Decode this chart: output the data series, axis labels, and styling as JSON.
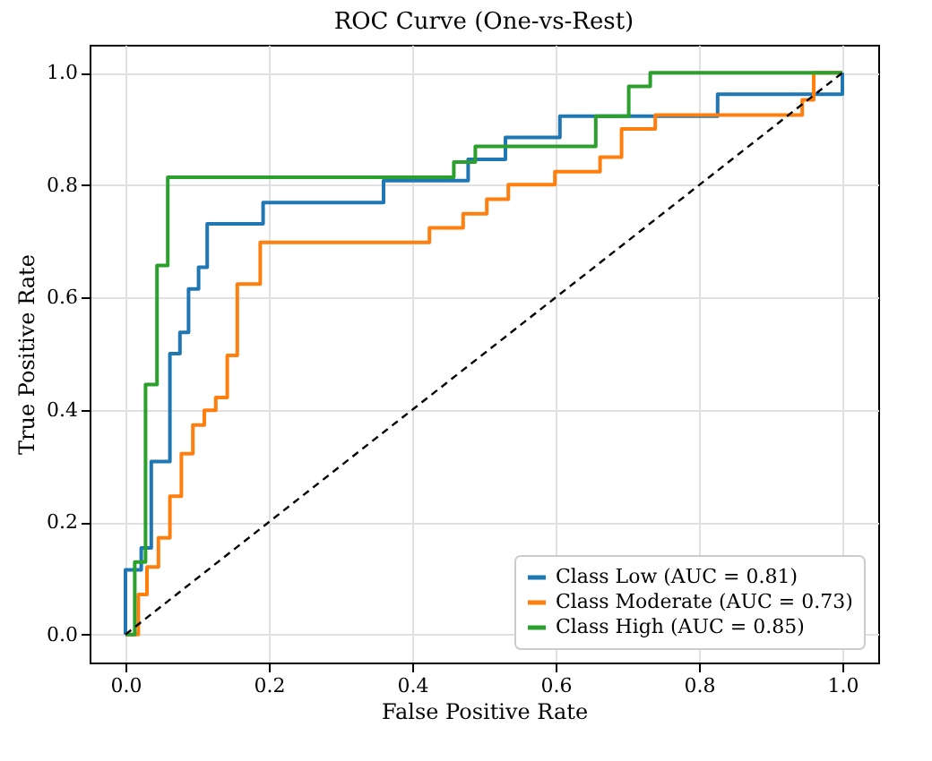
{
  "chart_data": {
    "type": "step",
    "title": "ROC Curve (One-vs-Rest)",
    "xlabel": "False Positive Rate",
    "ylabel": "True Positive Rate",
    "xlim": [
      -0.05,
      1.05
    ],
    "ylim": [
      -0.05,
      1.05
    ],
    "xticks": [
      {
        "value": 0,
        "label": "0.0"
      },
      0.2,
      0.4,
      0.6,
      0.8,
      {
        "value": 1,
        "label": "1.0"
      }
    ],
    "yticks": [
      {
        "value": 0,
        "label": "0.0"
      },
      0.2,
      0.4,
      0.6,
      0.8,
      {
        "value": 1,
        "label": "1.0"
      }
    ],
    "grid": true,
    "legend": "bottom right",
    "series": [
      {
        "name": "Class Low (AUC = 0.81)",
        "color": "#1f77b4",
        "x": [
          0,
          0,
          0.022,
          0.022,
          0.036,
          0.036,
          0.062,
          0.062,
          0.076,
          0.076,
          0.088,
          0.088,
          0.102,
          0.102,
          0.114,
          0.114,
          0.192,
          0.192,
          0.36,
          0.36,
          0.478,
          0.478,
          0.53,
          0.53,
          0.606,
          0.606,
          0.826,
          0.826,
          1,
          1
        ],
        "values": [
          0,
          0.115,
          0.115,
          0.154,
          0.154,
          0.308,
          0.308,
          0.5,
          0.5,
          0.538,
          0.538,
          0.615,
          0.615,
          0.654,
          0.654,
          0.731,
          0.731,
          0.769,
          0.769,
          0.808,
          0.808,
          0.846,
          0.846,
          0.885,
          0.885,
          0.923,
          0.923,
          0.962,
          0.962,
          1
        ]
      },
      {
        "name": "Class Moderate (AUC = 0.73)",
        "color": "#ff7f0e",
        "x": [
          0,
          0.018,
          0.018,
          0.03,
          0.03,
          0.046,
          0.046,
          0.062,
          0.062,
          0.078,
          0.078,
          0.094,
          0.094,
          0.11,
          0.11,
          0.126,
          0.126,
          0.142,
          0.142,
          0.156,
          0.156,
          0.188,
          0.188,
          0.424,
          0.424,
          0.471,
          0.471,
          0.504,
          0.504,
          0.534,
          0.534,
          0.599,
          0.599,
          0.662,
          0.662,
          0.692,
          0.692,
          0.739,
          0.739,
          0.944,
          0.944,
          0.96,
          0.96,
          1
        ],
        "values": [
          0,
          0,
          0.071,
          0.071,
          0.12,
          0.12,
          0.172,
          0.172,
          0.246,
          0.246,
          0.322,
          0.322,
          0.373,
          0.373,
          0.399,
          0.399,
          0.422,
          0.422,
          0.497,
          0.497,
          0.624,
          0.624,
          0.698,
          0.698,
          0.724,
          0.724,
          0.749,
          0.749,
          0.775,
          0.775,
          0.801,
          0.801,
          0.824,
          0.824,
          0.85,
          0.85,
          0.9,
          0.9,
          0.925,
          0.925,
          0.952,
          0.952,
          1,
          1
        ]
      },
      {
        "name": "Class High (AUC = 0.85)",
        "color": "#2ca02c",
        "x": [
          0,
          0.013,
          0.013,
          0.028,
          0.028,
          0.044,
          0.044,
          0.059,
          0.059,
          0.458,
          0.458,
          0.488,
          0.488,
          0.656,
          0.656,
          0.702,
          0.702,
          0.732,
          0.732,
          1
        ],
        "values": [
          0,
          0,
          0.129,
          0.129,
          0.445,
          0.445,
          0.657,
          0.657,
          0.814,
          0.814,
          0.841,
          0.841,
          0.869,
          0.869,
          0.923,
          0.923,
          0.976,
          0.976,
          1,
          1
        ]
      },
      {
        "type": "line",
        "color": "#000000",
        "line_style": "dashed",
        "x": [
          0,
          1
        ],
        "values": [
          0,
          1
        ]
      }
    ]
  }
}
